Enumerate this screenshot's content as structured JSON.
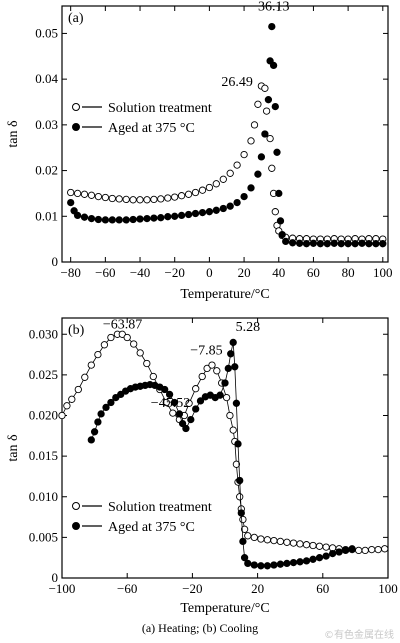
{
  "caption": "(a) Heating; (b) Cooling",
  "watermark": "©有色金属在线",
  "chart_data": [
    {
      "type": "scatter",
      "panel_label": "(a)",
      "xlabel": "Temperature/°C",
      "ylabel": "tan δ",
      "xlim": [
        -85,
        103
      ],
      "ylim": [
        0,
        0.056
      ],
      "xticks": [
        -80,
        -60,
        -40,
        -20,
        0,
        20,
        40,
        60,
        80,
        100
      ],
      "yticks": [
        0,
        0.01,
        0.02,
        0.03,
        0.04,
        0.05
      ],
      "ytick_labels": [
        "0",
        "0.01",
        "0.02",
        "0.03",
        "0.04",
        "0.05"
      ],
      "legend_position": "left",
      "annotations": [
        {
          "text": "36.13",
          "x": 36.13,
          "y": 0.0515
        },
        {
          "text": "26.49",
          "x": 26.49,
          "y": 0.0385
        }
      ],
      "series": [
        {
          "name": "Solution treatment",
          "marker": "open-circle",
          "points": [
            [
              -80,
              0.0152
            ],
            [
              -76,
              0.015
            ],
            [
              -72,
              0.0148
            ],
            [
              -68,
              0.0146
            ],
            [
              -64,
              0.0143
            ],
            [
              -60,
              0.0141
            ],
            [
              -56,
              0.0139
            ],
            [
              -52,
              0.0138
            ],
            [
              -48,
              0.0137
            ],
            [
              -44,
              0.0136
            ],
            [
              -40,
              0.0136
            ],
            [
              -36,
              0.0136
            ],
            [
              -32,
              0.0137
            ],
            [
              -28,
              0.0138
            ],
            [
              -24,
              0.014
            ],
            [
              -20,
              0.0142
            ],
            [
              -16,
              0.0145
            ],
            [
              -12,
              0.0148
            ],
            [
              -8,
              0.0152
            ],
            [
              -4,
              0.0157
            ],
            [
              0,
              0.0163
            ],
            [
              4,
              0.0171
            ],
            [
              8,
              0.0181
            ],
            [
              12,
              0.0194
            ],
            [
              16,
              0.0212
            ],
            [
              20,
              0.0235
            ],
            [
              24,
              0.0265
            ],
            [
              26,
              0.03
            ],
            [
              28,
              0.0345
            ],
            [
              30,
              0.0385
            ],
            [
              32,
              0.038
            ],
            [
              33,
              0.033
            ],
            [
              35,
              0.027
            ],
            [
              36,
              0.0205
            ],
            [
              37,
              0.015
            ],
            [
              38,
              0.011
            ],
            [
              39,
              0.008
            ],
            [
              40,
              0.0068
            ],
            [
              42,
              0.0058
            ],
            [
              44,
              0.0054
            ],
            [
              48,
              0.0052
            ],
            [
              52,
              0.0051
            ],
            [
              56,
              0.0051
            ],
            [
              60,
              0.005
            ],
            [
              64,
              0.005
            ],
            [
              68,
              0.005
            ],
            [
              72,
              0.0051
            ],
            [
              76,
              0.005
            ],
            [
              80,
              0.005
            ],
            [
              84,
              0.0051
            ],
            [
              88,
              0.005
            ],
            [
              92,
              0.0051
            ],
            [
              96,
              0.0051
            ],
            [
              100,
              0.005
            ]
          ]
        },
        {
          "name": "Aged at 375 °C",
          "marker": "filled-circle",
          "points": [
            [
              -80,
              0.013
            ],
            [
              -78,
              0.0112
            ],
            [
              -76,
              0.0102
            ],
            [
              -72,
              0.0098
            ],
            [
              -68,
              0.0095
            ],
            [
              -64,
              0.0093
            ],
            [
              -60,
              0.0092
            ],
            [
              -56,
              0.0092
            ],
            [
              -52,
              0.0092
            ],
            [
              -48,
              0.0092
            ],
            [
              -44,
              0.0093
            ],
            [
              -40,
              0.0094
            ],
            [
              -36,
              0.0095
            ],
            [
              -32,
              0.0096
            ],
            [
              -28,
              0.0097
            ],
            [
              -24,
              0.0099
            ],
            [
              -20,
              0.01
            ],
            [
              -16,
              0.0102
            ],
            [
              -12,
              0.0104
            ],
            [
              -8,
              0.0106
            ],
            [
              -4,
              0.0108
            ],
            [
              0,
              0.011
            ],
            [
              4,
              0.0113
            ],
            [
              8,
              0.0117
            ],
            [
              12,
              0.0122
            ],
            [
              16,
              0.013
            ],
            [
              20,
              0.0143
            ],
            [
              24,
              0.0162
            ],
            [
              28,
              0.0192
            ],
            [
              30,
              0.023
            ],
            [
              32,
              0.028
            ],
            [
              34,
              0.0355
            ],
            [
              35,
              0.044
            ],
            [
              36,
              0.0515
            ],
            [
              37,
              0.043
            ],
            [
              38,
              0.034
            ],
            [
              39,
              0.024
            ],
            [
              40,
              0.015
            ],
            [
              41,
              0.009
            ],
            [
              42,
              0.006
            ],
            [
              44,
              0.0045
            ],
            [
              48,
              0.0042
            ],
            [
              52,
              0.0041
            ],
            [
              56,
              0.004
            ],
            [
              60,
              0.0041
            ],
            [
              64,
              0.004
            ],
            [
              68,
              0.004
            ],
            [
              72,
              0.0041
            ],
            [
              76,
              0.004
            ],
            [
              80,
              0.004
            ],
            [
              84,
              0.004
            ],
            [
              88,
              0.0041
            ],
            [
              92,
              0.004
            ],
            [
              96,
              0.004
            ],
            [
              100,
              0.004
            ]
          ]
        }
      ]
    },
    {
      "type": "scatter",
      "panel_label": "(b)",
      "xlabel": "Temperature/°C",
      "ylabel": "tan δ",
      "xlim": [
        -100,
        100
      ],
      "ylim": [
        0,
        0.032
      ],
      "xticks": [
        -100,
        -60,
        -20,
        20,
        60,
        100
      ],
      "yticks": [
        0,
        0.005,
        0.01,
        0.015,
        0.02,
        0.025,
        0.03
      ],
      "ytick_labels": [
        "0",
        "0.005",
        "0.010",
        "0.015",
        "0.020",
        "0.025",
        "0.030"
      ],
      "legend_position": "bottom-left",
      "annotations": [
        {
          "text": "−63.87",
          "x": -63.87,
          "y": 0.03
        },
        {
          "text": "−7.85",
          "x": -7.85,
          "y": 0.0265
        },
        {
          "text": "5.28",
          "x": 5.28,
          "y": 0.0292
        },
        {
          "text": "−45.52",
          "x": -45.52,
          "y": 0.024
        }
      ],
      "series": [
        {
          "name": "Solution treatment",
          "marker": "open-circle",
          "points": [
            [
              -100,
              0.02
            ],
            [
              -97,
              0.0212
            ],
            [
              -94,
              0.022
            ],
            [
              -90,
              0.0232
            ],
            [
              -86,
              0.0247
            ],
            [
              -82,
              0.0262
            ],
            [
              -78,
              0.0275
            ],
            [
              -74,
              0.0287
            ],
            [
              -70,
              0.0296
            ],
            [
              -66,
              0.03
            ],
            [
              -63,
              0.03
            ],
            [
              -60,
              0.0296
            ],
            [
              -56,
              0.0288
            ],
            [
              -52,
              0.0277
            ],
            [
              -48,
              0.0264
            ],
            [
              -44,
              0.0248
            ],
            [
              -40,
              0.0232
            ],
            [
              -36,
              0.0216
            ],
            [
              -32,
              0.0203
            ],
            [
              -28,
              0.0195
            ],
            [
              -25,
              0.02
            ],
            [
              -22,
              0.0215
            ],
            [
              -18,
              0.0233
            ],
            [
              -14,
              0.0248
            ],
            [
              -11,
              0.0258
            ],
            [
              -8,
              0.0262
            ],
            [
              -5,
              0.0255
            ],
            [
              -2,
              0.024
            ],
            [
              1,
              0.0222
            ],
            [
              3,
              0.02
            ],
            [
              5,
              0.0182
            ],
            [
              6,
              0.0168
            ],
            [
              7,
              0.014
            ],
            [
              8,
              0.0118
            ],
            [
              9,
              0.01
            ],
            [
              10,
              0.0085
            ],
            [
              11,
              0.0072
            ],
            [
              12,
              0.006
            ],
            [
              14,
              0.0052
            ],
            [
              18,
              0.005
            ],
            [
              22,
              0.0048
            ],
            [
              26,
              0.0047
            ],
            [
              30,
              0.0046
            ],
            [
              34,
              0.0045
            ],
            [
              38,
              0.0044
            ],
            [
              42,
              0.0043
            ],
            [
              46,
              0.0042
            ],
            [
              50,
              0.0041
            ],
            [
              54,
              0.004
            ],
            [
              58,
              0.0039
            ],
            [
              62,
              0.0038
            ],
            [
              66,
              0.0037
            ],
            [
              70,
              0.0036
            ],
            [
              74,
              0.0035
            ],
            [
              78,
              0.0035
            ],
            [
              82,
              0.0034
            ],
            [
              86,
              0.0034
            ],
            [
              90,
              0.0035
            ],
            [
              94,
              0.0035
            ],
            [
              98,
              0.0036
            ]
          ]
        },
        {
          "name": "Aged at 375 °C",
          "marker": "filled-circle",
          "points": [
            [
              -82,
              0.017
            ],
            [
              -80,
              0.018
            ],
            [
              -78,
              0.0192
            ],
            [
              -76,
              0.0202
            ],
            [
              -73,
              0.021
            ],
            [
              -70,
              0.0216
            ],
            [
              -67,
              0.0222
            ],
            [
              -64,
              0.0226
            ],
            [
              -61,
              0.023
            ],
            [
              -58,
              0.0233
            ],
            [
              -55,
              0.0235
            ],
            [
              -52,
              0.0236
            ],
            [
              -49,
              0.0237
            ],
            [
              -46,
              0.0238
            ],
            [
              -43,
              0.0237
            ],
            [
              -40,
              0.0235
            ],
            [
              -37,
              0.0232
            ],
            [
              -34,
              0.0226
            ],
            [
              -31,
              0.0216
            ],
            [
              -28,
              0.0202
            ],
            [
              -26,
              0.019
            ],
            [
              -24,
              0.0184
            ],
            [
              -21,
              0.0195
            ],
            [
              -18,
              0.0208
            ],
            [
              -15,
              0.0218
            ],
            [
              -12,
              0.0223
            ],
            [
              -9,
              0.0225
            ],
            [
              -6,
              0.0222
            ],
            [
              -3,
              0.0225
            ],
            [
              0,
              0.024
            ],
            [
              2,
              0.0258
            ],
            [
              3.5,
              0.0276
            ],
            [
              5,
              0.029
            ],
            [
              6,
              0.026
            ],
            [
              7,
              0.0215
            ],
            [
              8,
              0.0165
            ],
            [
              9,
              0.012
            ],
            [
              10,
              0.008
            ],
            [
              11,
              0.0045
            ],
            [
              12,
              0.0025
            ],
            [
              14,
              0.0018
            ],
            [
              18,
              0.0016
            ],
            [
              22,
              0.0015
            ],
            [
              26,
              0.0015
            ],
            [
              30,
              0.0016
            ],
            [
              34,
              0.0017
            ],
            [
              38,
              0.0018
            ],
            [
              42,
              0.0019
            ],
            [
              46,
              0.002
            ],
            [
              50,
              0.0021
            ],
            [
              54,
              0.0023
            ],
            [
              58,
              0.0025
            ],
            [
              62,
              0.0027
            ],
            [
              66,
              0.003
            ],
            [
              70,
              0.0032
            ],
            [
              74,
              0.0034
            ],
            [
              78,
              0.0036
            ]
          ]
        }
      ]
    }
  ]
}
